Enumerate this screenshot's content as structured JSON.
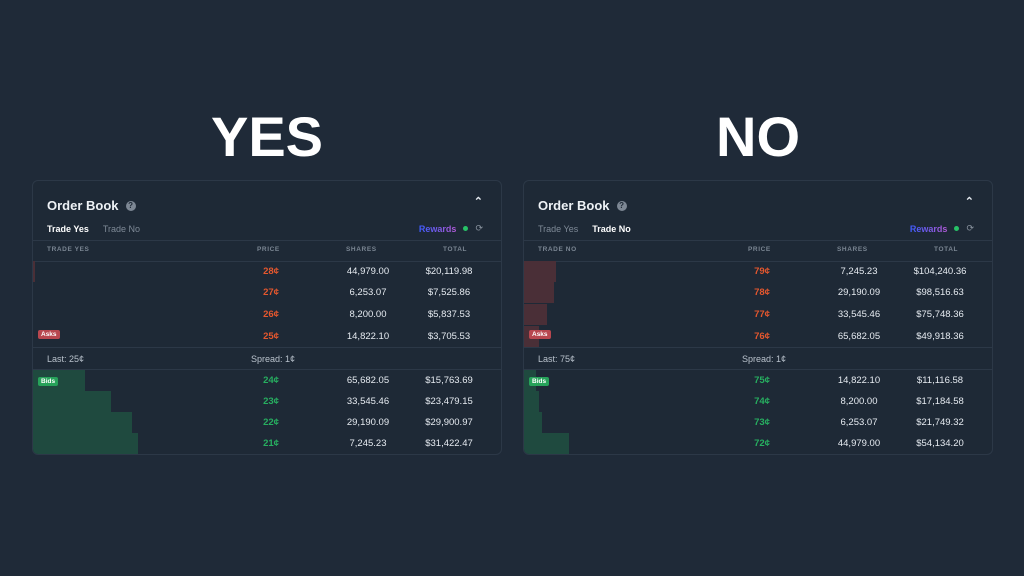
{
  "titles": {
    "yes": "YES",
    "no": "NO"
  },
  "colors": {
    "background": "#1f2a38",
    "panel": "#1e2936",
    "ask_price": "#e4572e",
    "bid_price": "#27ae60",
    "ask_depth": "#4a2f37",
    "bid_depth": "#1f4a3f",
    "rewards_gradient_start": "#3d5cff",
    "rewards_gradient_end": "#b25ad6",
    "rewards_dot": "#27c267"
  },
  "panels": [
    {
      "id": "yes",
      "title": "Order Book",
      "help_icon": "question-circle-icon",
      "collapse_icon": "chevron-up-icon",
      "tabs": [
        {
          "label": "Trade Yes",
          "active": true
        },
        {
          "label": "Trade No",
          "active": false
        }
      ],
      "rewards_label": "Rewards",
      "refresh_icon": "refresh-icon",
      "columns": {
        "side": "TRADE YES",
        "price": "PRICE",
        "shares": "SHARES",
        "total": "TOTAL"
      },
      "asks_badge": "Asks",
      "bids_badge": "Bids",
      "asks": [
        {
          "price": "28¢",
          "shares": "44,979.00",
          "total": "$20,119.98",
          "depth": 2
        },
        {
          "price": "27¢",
          "shares": "6,253.07",
          "total": "$7,525.86",
          "depth": 0
        },
        {
          "price": "26¢",
          "shares": "8,200.00",
          "total": "$5,837.53",
          "depth": 0
        },
        {
          "price": "25¢",
          "shares": "14,822.10",
          "total": "$3,705.53",
          "depth": 0
        }
      ],
      "last": "Last: 25¢",
      "spread": "Spread: 1¢",
      "bids": [
        {
          "price": "24¢",
          "shares": "65,682.05",
          "total": "$15,763.69",
          "depth": 52
        },
        {
          "price": "23¢",
          "shares": "33,545.46",
          "total": "$23,479.15",
          "depth": 78
        },
        {
          "price": "22¢",
          "shares": "29,190.09",
          "total": "$29,900.97",
          "depth": 99
        },
        {
          "price": "21¢",
          "shares": "7,245.23",
          "total": "$31,422.47",
          "depth": 105
        }
      ]
    },
    {
      "id": "no",
      "title": "Order Book",
      "help_icon": "question-circle-icon",
      "collapse_icon": "chevron-up-icon",
      "tabs": [
        {
          "label": "Trade Yes",
          "active": false
        },
        {
          "label": "Trade No",
          "active": true
        }
      ],
      "rewards_label": "Rewards",
      "refresh_icon": "refresh-icon",
      "columns": {
        "side": "TRADE NO",
        "price": "PRICE",
        "shares": "SHARES",
        "total": "TOTAL"
      },
      "asks_badge": "Asks",
      "bids_badge": "Bids",
      "asks": [
        {
          "price": "79¢",
          "shares": "7,245.23",
          "total": "$104,240.36",
          "depth": 32
        },
        {
          "price": "78¢",
          "shares": "29,190.09",
          "total": "$98,516.63",
          "depth": 30
        },
        {
          "price": "77¢",
          "shares": "33,545.46",
          "total": "$75,748.36",
          "depth": 23
        },
        {
          "price": "76¢",
          "shares": "65,682.05",
          "total": "$49,918.36",
          "depth": 15
        }
      ],
      "last": "Last: 75¢",
      "spread": "Spread: 1¢",
      "bids": [
        {
          "price": "75¢",
          "shares": "14,822.10",
          "total": "$11,116.58",
          "depth": 12
        },
        {
          "price": "74¢",
          "shares": "8,200.00",
          "total": "$17,184.58",
          "depth": 15
        },
        {
          "price": "73¢",
          "shares": "6,253.07",
          "total": "$21,749.32",
          "depth": 18
        },
        {
          "price": "72¢",
          "shares": "44,979.00",
          "total": "$54,134.20",
          "depth": 45
        }
      ]
    }
  ]
}
